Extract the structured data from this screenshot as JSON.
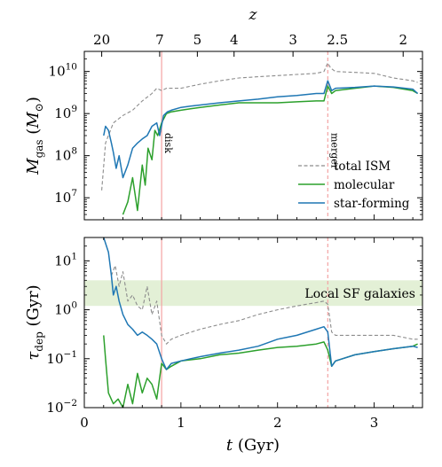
{
  "chart_data": [
    {
      "type": "line",
      "panel": "top",
      "ylabel": "M_gas (M_sun)",
      "xlabel": "",
      "x_axis": "t (Gyr)",
      "xlim": [
        0,
        3.5
      ],
      "ylim": [
        3000000.0,
        30000000000.0
      ],
      "yscale": "log",
      "yticks": [
        {
          "v": 10000000.0,
          "m": "10",
          "e": "7"
        },
        {
          "v": 100000000.0,
          "m": "10",
          "e": "8"
        },
        {
          "v": 1000000000.0,
          "m": "10",
          "e": "9"
        },
        {
          "v": 10000000000.0,
          "m": "10",
          "e": "10"
        }
      ],
      "top_axis": {
        "label": "z",
        "ticks": [
          {
            "label": "20",
            "t": 0.18
          },
          {
            "label": "7",
            "t": 0.78
          },
          {
            "label": "5",
            "t": 1.17
          },
          {
            "label": "4",
            "t": 1.55
          },
          {
            "label": "3",
            "t": 2.16
          },
          {
            "label": "2.5",
            "t": 2.62
          },
          {
            "label": "2",
            "t": 3.3
          }
        ]
      },
      "vlines": [
        {
          "t": 0.8,
          "label": "disk",
          "color": "#f4a3a3",
          "style": "solid"
        },
        {
          "t": 2.52,
          "label": "merger",
          "color": "#f4a3a3",
          "style": "dashed"
        }
      ],
      "legend": {
        "position": "lower-right",
        "entries": [
          "total ISM",
          "molecular",
          "star-forming"
        ]
      },
      "series": [
        {
          "name": "total ISM",
          "color": "#8c8c8c",
          "style": "dashed",
          "x": [
            0.18,
            0.22,
            0.3,
            0.4,
            0.5,
            0.6,
            0.7,
            0.75,
            0.8,
            0.85,
            1.0,
            1.2,
            1.4,
            1.6,
            1.8,
            2.0,
            2.2,
            2.4,
            2.48,
            2.52,
            2.55,
            2.6,
            2.8,
            3.0,
            3.2,
            3.4,
            3.45
          ],
          "y": [
            15000000.0,
            200000000.0,
            600000000.0,
            900000000.0,
            1200000000.0,
            2000000000.0,
            3000000000.0,
            4000000000.0,
            3500000000.0,
            4000000000.0,
            4000000000.0,
            5000000000.0,
            6000000000.0,
            7000000000.0,
            7500000000.0,
            8000000000.0,
            8500000000.0,
            9000000000.0,
            10000000000.0,
            16000000000.0,
            12000000000.0,
            10000000000.0,
            9500000000.0,
            9000000000.0,
            7000000000.0,
            6000000000.0,
            5500000000.0
          ]
        },
        {
          "name": "molecular",
          "color": "#2ca02c",
          "style": "solid",
          "x": [
            0.4,
            0.45,
            0.5,
            0.55,
            0.6,
            0.63,
            0.66,
            0.7,
            0.73,
            0.76,
            0.8,
            0.85,
            0.9,
            1.0,
            1.1,
            1.2,
            1.4,
            1.6,
            1.8,
            2.0,
            2.2,
            2.4,
            2.48,
            2.52,
            2.56,
            2.6,
            2.8,
            3.0,
            3.2,
            3.4,
            3.45
          ],
          "y": [
            4000000.0,
            8000000.0,
            30000000.0,
            5000000.0,
            60000000.0,
            20000000.0,
            150000000.0,
            80000000.0,
            400000000.0,
            300000000.0,
            600000000.0,
            1000000000.0,
            1100000000.0,
            1200000000.0,
            1300000000.0,
            1400000000.0,
            1600000000.0,
            1800000000.0,
            1800000000.0,
            1800000000.0,
            1900000000.0,
            2000000000.0,
            2000000000.0,
            4500000000.0,
            3000000000.0,
            3500000000.0,
            4000000000.0,
            4500000000.0,
            4200000000.0,
            3500000000.0,
            3000000000.0
          ]
        },
        {
          "name": "star-forming",
          "color": "#1f77b4",
          "style": "solid",
          "x": [
            0.2,
            0.22,
            0.25,
            0.28,
            0.3,
            0.33,
            0.36,
            0.4,
            0.45,
            0.5,
            0.55,
            0.6,
            0.65,
            0.7,
            0.75,
            0.78,
            0.82,
            0.86,
            0.9,
            1.0,
            1.1,
            1.2,
            1.4,
            1.6,
            1.8,
            2.0,
            2.2,
            2.4,
            2.48,
            2.52,
            2.56,
            2.6,
            2.8,
            3.0,
            3.2,
            3.4,
            3.45
          ],
          "y": [
            300000000.0,
            500000000.0,
            400000000.0,
            200000000.0,
            120000000.0,
            50000000.0,
            100000000.0,
            30000000.0,
            60000000.0,
            150000000.0,
            200000000.0,
            250000000.0,
            300000000.0,
            500000000.0,
            600000000.0,
            300000000.0,
            900000000.0,
            1100000000.0,
            1200000000.0,
            1400000000.0,
            1500000000.0,
            1600000000.0,
            1800000000.0,
            2000000000.0,
            2200000000.0,
            2500000000.0,
            2700000000.0,
            3000000000.0,
            3000000000.0,
            6000000000.0,
            3500000000.0,
            4000000000.0,
            4200000000.0,
            4500000000.0,
            4300000000.0,
            3800000000.0,
            3000000000.0
          ]
        }
      ]
    },
    {
      "type": "line",
      "panel": "bottom",
      "ylabel": "tau_dep (Gyr)",
      "xlabel": "t (Gyr)",
      "xlim": [
        0,
        3.5
      ],
      "ylim": [
        0.01,
        30
      ],
      "yscale": "log",
      "yticks": [
        {
          "v": 0.01,
          "m": "10",
          "e": "−2"
        },
        {
          "v": 0.1,
          "m": "10",
          "e": "−1"
        },
        {
          "v": 1,
          "m": "10",
          "e": "0"
        },
        {
          "v": 10,
          "m": "10",
          "e": "1"
        }
      ],
      "xticks": [
        0,
        1,
        2,
        3
      ],
      "band": {
        "label": "Local SF galaxies",
        "y0": 1.2,
        "y1": 4.0,
        "color": "#e3f0d6",
        "text_color": "#5aa34a"
      },
      "vlines": [
        {
          "t": 0.8,
          "color": "#f4a3a3",
          "style": "solid"
        },
        {
          "t": 2.52,
          "color": "#f4a3a3",
          "style": "dashed"
        }
      ],
      "series": [
        {
          "name": "total ISM",
          "color": "#8c8c8c",
          "style": "dashed",
          "x": [
            0.28,
            0.32,
            0.36,
            0.4,
            0.45,
            0.5,
            0.55,
            0.6,
            0.65,
            0.7,
            0.75,
            0.8,
            0.85,
            0.9,
            1.0,
            1.2,
            1.4,
            1.6,
            1.8,
            2.0,
            2.2,
            2.4,
            2.48,
            2.52,
            2.56,
            2.6,
            2.8,
            3.0,
            3.2,
            3.4,
            3.45
          ],
          "y": [
            5,
            8,
            3,
            6,
            1.5,
            2,
            1.2,
            1,
            3,
            0.8,
            1.5,
            0.3,
            0.2,
            0.25,
            0.3,
            0.4,
            0.5,
            0.6,
            0.8,
            1.0,
            1.2,
            1.4,
            1.5,
            1.3,
            0.35,
            0.3,
            0.3,
            0.3,
            0.3,
            0.25,
            0.25
          ]
        },
        {
          "name": "molecular",
          "color": "#2ca02c",
          "style": "solid",
          "x": [
            0.2,
            0.22,
            0.25,
            0.3,
            0.35,
            0.4,
            0.45,
            0.5,
            0.55,
            0.6,
            0.65,
            0.7,
            0.75,
            0.8,
            0.85,
            0.9,
            1.0,
            1.2,
            1.4,
            1.6,
            1.8,
            2.0,
            2.2,
            2.4,
            2.48,
            2.52,
            2.56,
            2.6,
            2.8,
            3.0,
            3.2,
            3.4,
            3.45
          ],
          "y": [
            0.3,
            0.1,
            0.02,
            0.012,
            0.015,
            0.01,
            0.03,
            0.012,
            0.05,
            0.02,
            0.04,
            0.03,
            0.015,
            0.08,
            0.06,
            0.07,
            0.09,
            0.1,
            0.12,
            0.13,
            0.15,
            0.17,
            0.18,
            0.2,
            0.22,
            0.15,
            0.07,
            0.09,
            0.12,
            0.14,
            0.16,
            0.18,
            0.2
          ]
        },
        {
          "name": "star-forming",
          "color": "#1f77b4",
          "style": "solid",
          "x": [
            0.2,
            0.25,
            0.28,
            0.3,
            0.33,
            0.36,
            0.4,
            0.45,
            0.5,
            0.55,
            0.6,
            0.65,
            0.7,
            0.75,
            0.8,
            0.85,
            0.9,
            1.0,
            1.1,
            1.2,
            1.4,
            1.6,
            1.8,
            2.0,
            2.2,
            2.4,
            2.48,
            2.52,
            2.56,
            2.6,
            2.8,
            3.0,
            3.2,
            3.4,
            3.45
          ],
          "y": [
            30,
            15,
            5,
            2,
            3,
            1.5,
            0.8,
            0.5,
            0.4,
            0.3,
            0.35,
            0.3,
            0.25,
            0.2,
            0.1,
            0.06,
            0.08,
            0.09,
            0.1,
            0.11,
            0.13,
            0.15,
            0.18,
            0.25,
            0.3,
            0.4,
            0.45,
            0.35,
            0.07,
            0.09,
            0.12,
            0.14,
            0.16,
            0.18,
            0.17
          ]
        }
      ]
    }
  ]
}
